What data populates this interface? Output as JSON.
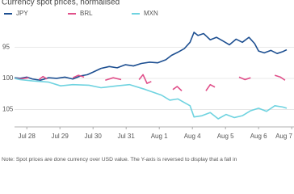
{
  "chart_data": {
    "type": "line",
    "title": "Currency spot prices, normalised",
    "note": "Note: Spot prices are done currency over USD value. The Y-axis is reversed to display that a fall in",
    "xlim": [
      -0.37,
      7.85
    ],
    "xticks": [
      {
        "value": 0,
        "label": "Jul 28"
      },
      {
        "value": 1,
        "label": "Jul 29"
      },
      {
        "value": 2,
        "label": "Jul 30"
      },
      {
        "value": 3,
        "label": "Jul 31"
      },
      {
        "value": 4,
        "label": "Aug 1"
      },
      {
        "value": 5,
        "label": "Aug 4"
      },
      {
        "value": 6,
        "label": "Aug 5"
      },
      {
        "value": 7,
        "label": "Aug 6"
      },
      {
        "value": 8,
        "label": "Aug 7"
      }
    ],
    "ylim": [
      91.3,
      107.8
    ],
    "y_reversed": true,
    "yticks": [
      95,
      100,
      105
    ],
    "grid": true,
    "series": [
      {
        "name": "JPY",
        "color": "#1d4f91",
        "x": [
          -0.37,
          -0.2,
          0,
          0.17,
          0.41,
          0.66,
          0.9,
          1.15,
          1.39,
          1.63,
          1.83,
          2.0,
          2.24,
          2.49,
          2.73,
          2.98,
          3.22,
          3.46,
          3.71,
          3.95,
          4.2,
          4.37,
          4.56,
          4.76,
          4.93,
          5.05,
          5.17,
          5.34,
          5.54,
          5.73,
          5.93,
          6.12,
          6.32,
          6.51,
          6.71,
          6.88,
          7.0,
          7.17,
          7.37,
          7.56,
          7.73,
          7.85
        ],
        "values": [
          99.9,
          100.0,
          99.8,
          100.1,
          100.3,
          99.9,
          100.0,
          99.8,
          100.1,
          99.6,
          99.4,
          99.0,
          98.4,
          98.1,
          98.3,
          97.8,
          98.0,
          97.6,
          97.4,
          97.5,
          97.0,
          96.3,
          95.8,
          95.2,
          94.2,
          92.6,
          93.1,
          92.8,
          93.8,
          93.4,
          94.0,
          94.6,
          93.7,
          94.2,
          93.4,
          94.4,
          95.6,
          95.9,
          95.5,
          96.0,
          95.7,
          95.4
        ]
      },
      {
        "name": "BRL",
        "color": "#e0508a",
        "x": [
          -0.37,
          -0.2,
          0.05,
          null,
          0.37,
          0.49,
          0.61,
          null,
          1.39,
          1.56,
          1.73,
          null,
          2.37,
          2.61,
          2.85,
          null,
          3.39,
          3.51,
          3.63,
          3.76,
          null,
          4.41,
          4.54,
          4.68,
          null,
          5.41,
          5.54,
          5.68,
          null,
          6.41,
          6.59,
          6.76,
          null,
          7.49,
          7.66,
          7.8
        ],
        "values": [
          100.0,
          100.1,
          99.9,
          null,
          100.2,
          99.7,
          100.1,
          null,
          99.9,
          99.5,
          99.8,
          null,
          100.3,
          99.9,
          100.2,
          null,
          100.2,
          99.4,
          100.8,
          100.5,
          null,
          101.8,
          101.3,
          102.0,
          null,
          102.0,
          101.0,
          101.4,
          null,
          99.8,
          100.2,
          99.9,
          null,
          99.5,
          99.8,
          100.3
        ]
      },
      {
        "name": "MXN",
        "color": "#6fd3e0",
        "x": [
          -0.37,
          -0.2,
          0.17,
          0.66,
          1.02,
          1.39,
          1.88,
          2.24,
          2.73,
          3.1,
          3.59,
          4.07,
          4.32,
          4.56,
          4.93,
          5.05,
          5.29,
          5.54,
          5.78,
          6.02,
          6.27,
          6.51,
          6.76,
          7.0,
          7.24,
          7.49,
          7.73,
          7.85
        ],
        "values": [
          100.0,
          100.2,
          100.4,
          100.6,
          101.2,
          101.0,
          101.1,
          101.5,
          101.2,
          101.0,
          101.8,
          102.7,
          103.5,
          103.3,
          104.4,
          106.2,
          106.0,
          105.5,
          106.5,
          105.8,
          106.3,
          106.0,
          105.2,
          104.8,
          105.3,
          104.4,
          104.6,
          104.8
        ]
      }
    ]
  }
}
